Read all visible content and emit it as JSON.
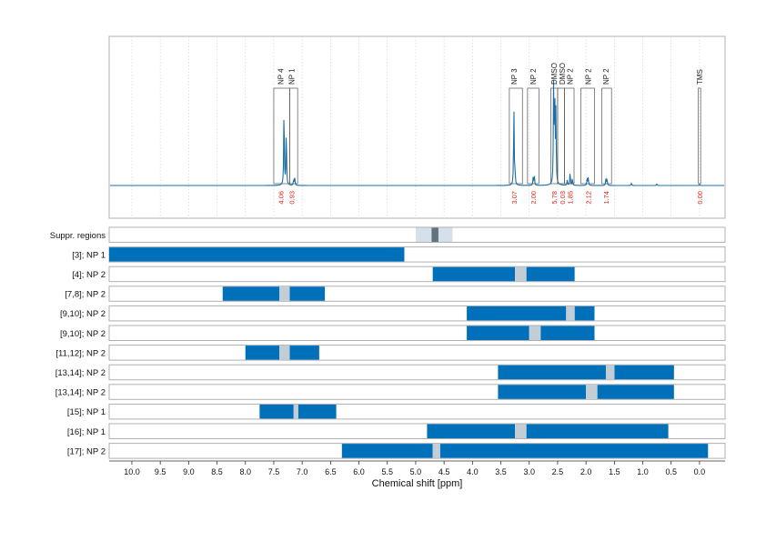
{
  "chart_data": {
    "type": "nmr-spectrum-with-region-bars",
    "xlabel": "Chemical shift [ppm]",
    "x_range_ppm": [
      10.4,
      -0.45
    ],
    "x_reversed": true,
    "x_ticks": [
      "10.0",
      "9.5",
      "9.0",
      "8.5",
      "8.0",
      "7.5",
      "7.0",
      "6.5",
      "6.0",
      "5.5",
      "5.0",
      "4.5",
      "4.0",
      "3.5",
      "3.0",
      "2.5",
      "2.0",
      "1.5",
      "1.0",
      "0.5",
      "0.0"
    ],
    "grid": "vertical dotted",
    "colors": {
      "spectrum": "#1b6fa8",
      "bar": "#0070bb",
      "bar_gap": "#c3cdd6",
      "integral": "#e0241b",
      "frame": "#b0b0b0",
      "suppr_light": "#d6e0ea",
      "suppr_dark": "#5f7380"
    },
    "spectrum_peaks": [
      {
        "ppm": 7.32,
        "height": 0.78
      },
      {
        "ppm": 7.28,
        "height": 0.55
      },
      {
        "ppm": 7.15,
        "height": 0.06
      },
      {
        "ppm": 7.13,
        "height": 0.07
      },
      {
        "ppm": 3.27,
        "height": 0.78
      },
      {
        "ppm": 3.25,
        "height": 0.12
      },
      {
        "ppm": 2.93,
        "height": 0.08
      },
      {
        "ppm": 2.91,
        "height": 0.1
      },
      {
        "ppm": 2.57,
        "height": 0.98
      },
      {
        "ppm": 2.55,
        "height": 0.9
      },
      {
        "ppm": 2.53,
        "height": 0.7
      },
      {
        "ppm": 2.33,
        "height": 0.05
      },
      {
        "ppm": 2.28,
        "height": 0.13
      },
      {
        "ppm": 2.24,
        "height": 0.07
      },
      {
        "ppm": 1.98,
        "height": 0.07
      },
      {
        "ppm": 1.96,
        "height": 0.08
      },
      {
        "ppm": 1.65,
        "height": 0.06
      },
      {
        "ppm": 1.63,
        "height": 0.07
      },
      {
        "ppm": 1.2,
        "height": 0.02
      },
      {
        "ppm": 0.75,
        "height": 0.015
      },
      {
        "ppm": 0.0,
        "height": 0.01
      }
    ],
    "peak_labels": [
      {
        "ppm": 7.38,
        "lo": 7.22,
        "hi": 7.5,
        "label": "NP 4",
        "integral": "4.06"
      },
      {
        "ppm": 7.19,
        "lo": 7.08,
        "hi": 7.22,
        "label": "NP 1",
        "integral": "0.93"
      },
      {
        "ppm": 3.27,
        "lo": 3.12,
        "hi": 3.35,
        "label": "NP 3",
        "integral": "3.07"
      },
      {
        "ppm": 2.93,
        "lo": 2.83,
        "hi": 3.03,
        "label": "NP 2",
        "integral": "2.00"
      },
      {
        "ppm": 2.56,
        "lo": 2.5,
        "hi": 2.62,
        "label": "DMSO",
        "integral": "5.78"
      },
      {
        "ppm": 2.42,
        "lo": 2.38,
        "hi": 2.5,
        "label": "DMSO",
        "integral": "0.03"
      },
      {
        "ppm": 2.28,
        "lo": 2.21,
        "hi": 2.38,
        "label": "NP 2",
        "integral": "1.85"
      },
      {
        "ppm": 1.96,
        "lo": 1.85,
        "hi": 2.09,
        "label": "NP 2",
        "integral": "2.12"
      },
      {
        "ppm": 1.65,
        "lo": 1.55,
        "hi": 1.72,
        "label": "NP 2",
        "integral": "1.74"
      },
      {
        "ppm": 0.0,
        "lo": -0.02,
        "hi": 0.02,
        "label": "TMS",
        "integral": "0.00"
      }
    ],
    "suppressed_regions": {
      "label": "Suppr. regions",
      "light": [
        5.0,
        4.35
      ],
      "dark": [
        4.72,
        4.6
      ]
    },
    "region_rows": [
      {
        "label": "[3]; NP 1",
        "segments": [
          [
            10.4,
            5.2
          ]
        ],
        "gaps": []
      },
      {
        "label": "[4]; NP 2",
        "segments": [
          [
            4.7,
            3.25
          ],
          [
            3.05,
            2.2
          ]
        ],
        "gaps": [
          [
            3.25,
            3.05
          ]
        ]
      },
      {
        "label": "[7,8]; NP 2",
        "segments": [
          [
            8.4,
            7.4
          ],
          [
            7.22,
            6.6
          ]
        ],
        "gaps": [
          [
            7.4,
            7.22
          ]
        ]
      },
      {
        "label": "[9,10]; NP 2",
        "segments": [
          [
            4.1,
            2.35
          ],
          [
            2.2,
            1.85
          ]
        ],
        "gaps": [
          [
            2.35,
            2.2
          ]
        ]
      },
      {
        "label": "[9,10]; NP 2",
        "segments": [
          [
            4.1,
            3.0
          ],
          [
            2.8,
            1.85
          ]
        ],
        "gaps": [
          [
            3.0,
            2.8
          ]
        ]
      },
      {
        "label": "[11,12]; NP 2",
        "segments": [
          [
            8.0,
            7.4
          ],
          [
            7.22,
            6.7
          ]
        ],
        "gaps": [
          [
            7.4,
            7.22
          ]
        ]
      },
      {
        "label": "[13,14]; NP 2",
        "segments": [
          [
            3.55,
            1.65
          ],
          [
            1.5,
            0.45
          ]
        ],
        "gaps": [
          [
            1.65,
            1.5
          ]
        ]
      },
      {
        "label": "[13,14]; NP 2",
        "segments": [
          [
            3.55,
            2.0
          ],
          [
            1.8,
            0.45
          ]
        ],
        "gaps": [
          [
            2.0,
            1.8
          ]
        ]
      },
      {
        "label": "[15]; NP 1",
        "segments": [
          [
            7.75,
            7.15
          ],
          [
            7.07,
            6.4
          ]
        ],
        "gaps": [
          [
            7.15,
            7.07
          ]
        ]
      },
      {
        "label": "[16]; NP 1",
        "segments": [
          [
            4.8,
            3.25
          ],
          [
            3.05,
            0.55
          ]
        ],
        "gaps": [
          [
            3.25,
            3.05
          ]
        ]
      },
      {
        "label": "[17]; NP 2",
        "segments": [
          [
            6.3,
            4.7
          ],
          [
            4.57,
            -0.15
          ]
        ],
        "gaps": [
          [
            4.7,
            4.57
          ]
        ]
      }
    ]
  }
}
